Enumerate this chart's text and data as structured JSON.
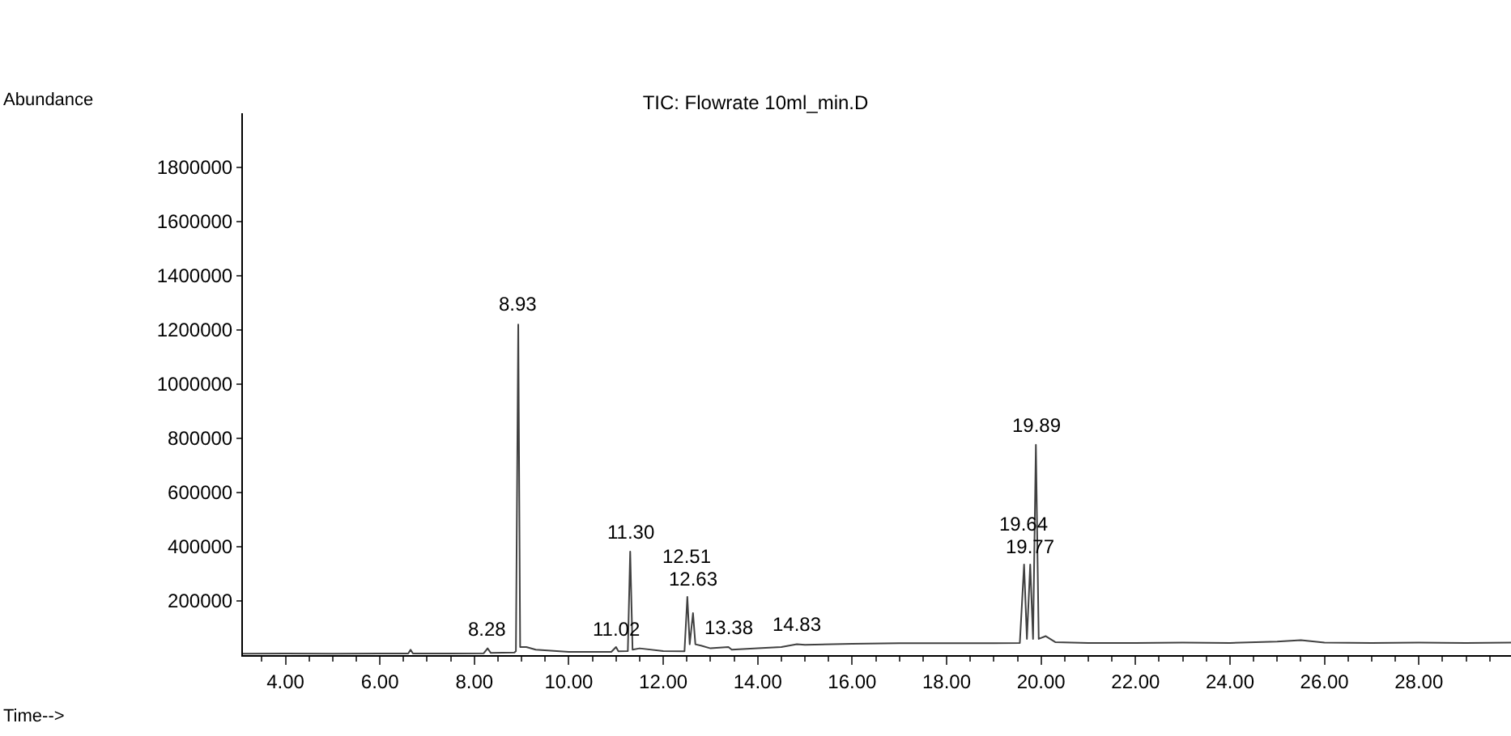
{
  "chart_data": {
    "type": "line",
    "title": "TIC: Flowrate 10ml_min.D",
    "x": [
      3.1,
      4.0,
      5.0,
      6.0,
      6.6,
      6.65,
      6.7,
      7.5,
      8.2,
      8.28,
      8.35,
      8.85,
      8.88,
      8.93,
      8.97,
      9.1,
      9.3,
      10.0,
      10.9,
      11.0,
      11.05,
      11.25,
      11.3,
      11.35,
      11.5,
      12.0,
      12.45,
      12.51,
      12.56,
      12.63,
      12.68,
      12.8,
      13.0,
      13.38,
      13.45,
      14.0,
      14.5,
      14.83,
      15.0,
      16.0,
      17.0,
      18.0,
      19.0,
      19.55,
      19.64,
      19.7,
      19.77,
      19.83,
      19.89,
      19.95,
      20.1,
      20.3,
      21.0,
      22.0,
      23.0,
      24.0,
      25.0,
      25.5,
      26.0,
      27.0,
      28.0,
      29.0,
      29.95
    ],
    "series": [
      {
        "color": "#404040",
        "values": [
          5000,
          6000,
          5000,
          6000,
          6000,
          20000,
          6000,
          6000,
          7000,
          25000,
          8000,
          10000,
          15000,
          1220000,
          30000,
          30000,
          20000,
          12000,
          12000,
          30000,
          14000,
          15000,
          382000,
          20000,
          25000,
          15000,
          14000,
          215000,
          40000,
          155000,
          40000,
          35000,
          25000,
          30000,
          20000,
          25000,
          30000,
          40000,
          38000,
          42000,
          44000,
          44000,
          44000,
          45000,
          334000,
          60000,
          334000,
          60000,
          776000,
          60000,
          70000,
          48000,
          45000,
          45000,
          46000,
          45000,
          50000,
          55000,
          46000,
          45000,
          46000,
          45000,
          46000
        ]
      }
    ],
    "xlim": [
      3.1,
      29.95
    ],
    "xticks": [
      {
        "value": 4,
        "label": "4.00"
      },
      {
        "value": 6,
        "label": "6.00"
      },
      {
        "value": 8,
        "label": "8.00"
      },
      {
        "value": 10,
        "label": "10.00"
      },
      {
        "value": 12,
        "label": "12.00"
      },
      {
        "value": 14,
        "label": "14.00"
      },
      {
        "value": 16,
        "label": "16.00"
      },
      {
        "value": 18,
        "label": "18.00"
      },
      {
        "value": 20,
        "label": "20.00"
      },
      {
        "value": 22,
        "label": "22.00"
      },
      {
        "value": 24,
        "label": "24.00"
      },
      {
        "value": 26,
        "label": "26.00"
      },
      {
        "value": 28,
        "label": "28.00"
      }
    ],
    "ylim": [
      0,
      2000000
    ],
    "yticks": [
      200000,
      400000,
      600000,
      800000,
      1000000,
      1200000,
      1400000,
      1600000,
      1800000
    ],
    "ylabel": "Abundance",
    "annotations": [
      "Time-->",
      {
        "text": "8.28",
        "x": 8.28,
        "y": 30000
      },
      {
        "text": "8.93",
        "x": 8.93,
        "y": 1230000
      },
      {
        "text": "11.02",
        "x": 11.02,
        "y": 30000
      },
      {
        "text": "11.30",
        "x": 11.3,
        "y": 390000
      },
      {
        "text": "12.51",
        "x": 12.51,
        "y": 215000
      },
      {
        "text": "12.63",
        "x": 12.63,
        "y": 155000
      },
      {
        "text": "13.38",
        "x": 13.38,
        "y": 35000
      },
      {
        "text": "14.83",
        "x": 14.83,
        "y": 45000
      },
      {
        "text": "19.64",
        "x": 19.64,
        "y": 334000
      },
      {
        "text": "19.77",
        "x": 19.77,
        "y": 334000
      },
      {
        "text": "19.89",
        "x": 19.89,
        "y": 785000
      }
    ]
  }
}
